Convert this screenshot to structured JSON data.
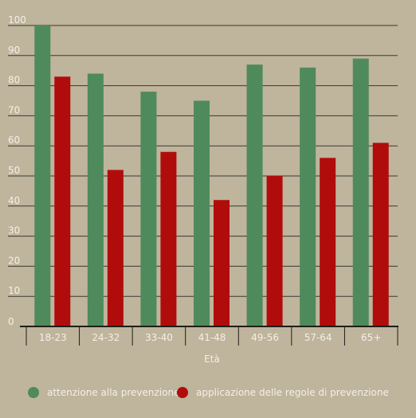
{
  "chart_data": {
    "type": "bar",
    "title": "",
    "xlabel": "Età",
    "ylabel": "",
    "ylim": [
      0,
      100
    ],
    "yticks": [
      "0",
      "10",
      "20",
      "30",
      "40",
      "50",
      "60",
      "70",
      "80",
      "90",
      "100"
    ],
    "grid": true,
    "legend_position": "bottom",
    "categories": [
      "18-23",
      "24-32",
      "33-40",
      "41-48",
      "49-56",
      "57-64",
      "65+"
    ],
    "series": [
      {
        "name": "attenzione alla prevenzione",
        "color": "#4f8a5c",
        "values": [
          100,
          84,
          78,
          75,
          87,
          86,
          89
        ]
      },
      {
        "name": "applicazione delle regole di prevenzione",
        "color": "#b10c0c",
        "values": [
          83,
          52,
          58,
          42,
          50,
          56,
          61
        ]
      }
    ]
  }
}
